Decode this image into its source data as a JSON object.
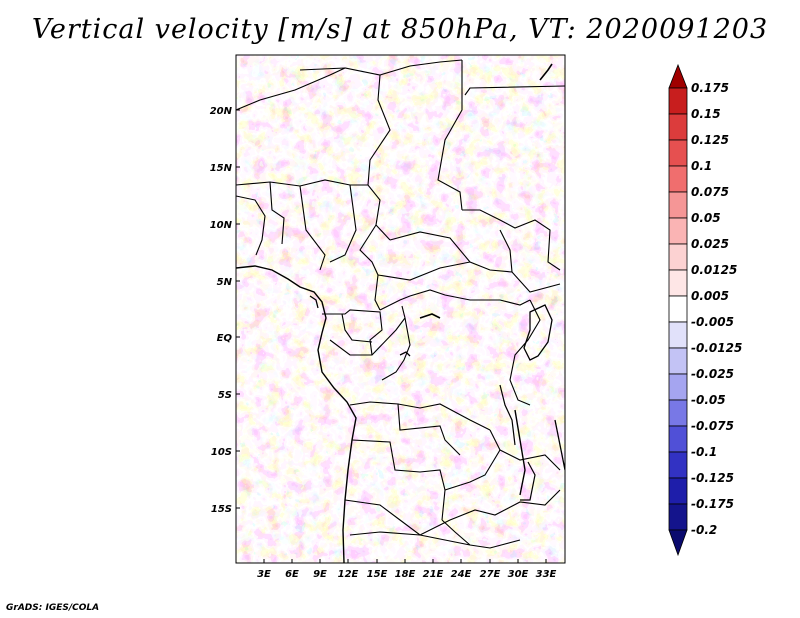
{
  "title": "Vertical velocity [m/s] at 850hPa, VT: 2020091203",
  "credit": "GrADS: IGES/COLA",
  "map": {
    "lat_labels": [
      "20N",
      "15N",
      "10N",
      "5N",
      "EQ",
      "5S",
      "10S",
      "15S"
    ],
    "lon_labels": [
      "3E",
      "6E",
      "9E",
      "12E",
      "15E",
      "18E",
      "21E",
      "24E",
      "27E",
      "30E",
      "33E"
    ]
  },
  "colorbar": {
    "labels": [
      "0.175",
      "0.15",
      "0.125",
      "0.1",
      "0.075",
      "0.05",
      "0.025",
      "0.0125",
      "0.005",
      "-0.005",
      "-0.0125",
      "-0.025",
      "-0.05",
      "-0.075",
      "-0.1",
      "-0.125",
      "-0.175",
      "-0.2"
    ],
    "colors": [
      "#a00000",
      "#c81e1e",
      "#dc3c3c",
      "#e65050",
      "#f06e6e",
      "#f59696",
      "#fab4b4",
      "#fcd2d2",
      "#fee6e6",
      "#ffffff",
      "#e1e1fa",
      "#c3c3f5",
      "#a5a5f0",
      "#7878e6",
      "#5050d7",
      "#3232c3",
      "#1e1eaa",
      "#14148c",
      "#0a0a6e"
    ]
  }
}
